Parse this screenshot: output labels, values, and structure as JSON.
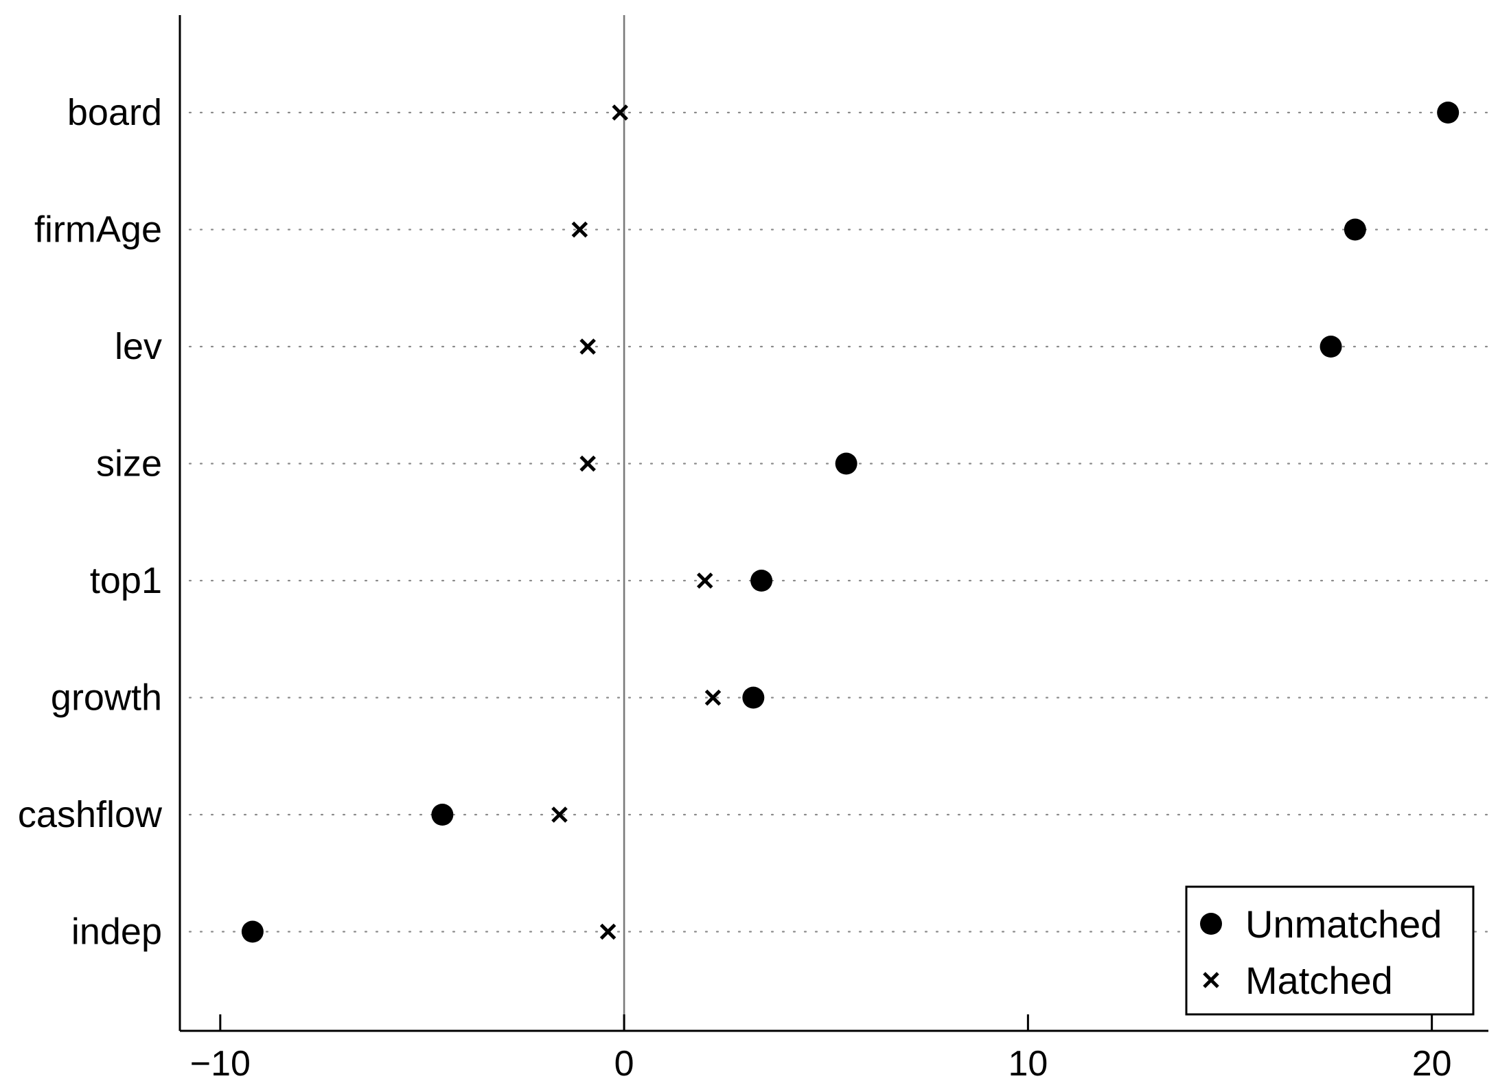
{
  "chart_data": {
    "type": "scatter",
    "categories": [
      "board",
      "firmAge",
      "lev",
      "size",
      "top1",
      "growth",
      "cashflow",
      "indep"
    ],
    "series": [
      {
        "name": "Unmatched",
        "marker": "dot",
        "values": [
          20.4,
          18.1,
          17.5,
          5.5,
          3.4,
          3.2,
          -4.5,
          -9.2
        ]
      },
      {
        "name": "Matched",
        "marker": "x",
        "values": [
          -0.1,
          -1.1,
          -0.9,
          -0.9,
          2.0,
          2.2,
          -1.6,
          -0.4
        ]
      }
    ],
    "xticks": [
      -10,
      0,
      10,
      20
    ],
    "xtick_labels": [
      "−10",
      "0",
      "10",
      "20"
    ],
    "xlim": [
      -11,
      21.4
    ],
    "reference_line_x": 0,
    "grid": "dotted-horizontal",
    "legend_position": "bottom-right",
    "title": "",
    "xlabel": "",
    "ylabel": ""
  }
}
